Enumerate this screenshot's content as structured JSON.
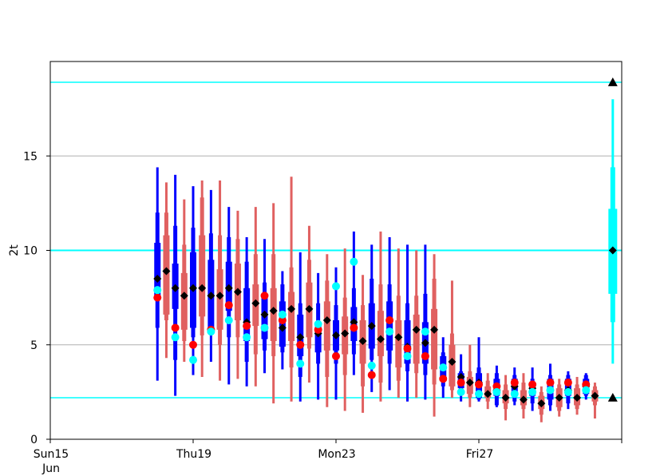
{
  "chart_data": {
    "type": "box",
    "ylabel": "2t",
    "ylim": [
      0,
      20
    ],
    "yticks": [
      0,
      5,
      10,
      15
    ],
    "xlim": [
      0,
      16
    ],
    "xticks": [
      {
        "x": 0,
        "label": "Sun15",
        "sublabel": "Jun",
        "color": "#ff0000"
      },
      {
        "x": 4,
        "label": "Thu19",
        "sublabel": "",
        "color": "#000000"
      },
      {
        "x": 8,
        "label": "Mon23",
        "sublabel": "",
        "color": "#000000"
      },
      {
        "x": 12,
        "label": "Fri27",
        "sublabel": "",
        "color": "#000000"
      },
      {
        "x": 16,
        "label": "",
        "sublabel": "",
        "color": "#000000"
      }
    ],
    "grid": true,
    "colors": {
      "blue": "#0000ff",
      "red": "#e06060",
      "cyan": "#00ffff",
      "red_dot": "#ff0000",
      "diamond": "#000000"
    },
    "hlines": [
      {
        "y": 18.9,
        "color": "#00ffff",
        "width": 1.5
      },
      {
        "y": 10.0,
        "color": "#00ffff",
        "width": 2
      },
      {
        "y": 2.2,
        "color": "#00ffff",
        "width": 1.5
      }
    ],
    "series": [
      {
        "name": "blue",
        "boxes": [
          {
            "x": 3.0,
            "min": 3.1,
            "p10": 5.9,
            "q1": 7.4,
            "q3": 10.4,
            "p90": 12.0,
            "max": 14.4,
            "mean": 8.5
          },
          {
            "x": 3.5,
            "min": 2.3,
            "p10": 4.2,
            "q1": 6.9,
            "q3": 9.3,
            "p90": 11.3,
            "max": 14.0,
            "mean": 8.0
          },
          {
            "x": 4.0,
            "min": 3.4,
            "p10": 5.4,
            "q1": 5.9,
            "q3": 9.9,
            "p90": 11.2,
            "max": 13.4,
            "mean": 8.0
          },
          {
            "x": 4.5,
            "min": 4.1,
            "p10": 5.6,
            "q1": 5.9,
            "q3": 9.5,
            "p90": 10.9,
            "max": 13.2,
            "mean": 7.6
          },
          {
            "x": 5.0,
            "min": 2.9,
            "p10": 5.4,
            "q1": 6.8,
            "q3": 9.4,
            "p90": 10.7,
            "max": 12.3,
            "mean": 8.0
          },
          {
            "x": 5.5,
            "min": 2.8,
            "p10": 4.1,
            "q1": 5.2,
            "q3": 8.0,
            "p90": 9.4,
            "max": 10.7,
            "mean": 6.2
          },
          {
            "x": 6.0,
            "min": 3.5,
            "p10": 4.7,
            "q1": 5.3,
            "q3": 7.6,
            "p90": 8.3,
            "max": 10.6,
            "mean": 6.6
          },
          {
            "x": 6.5,
            "min": 3.7,
            "p10": 4.6,
            "q1": 4.9,
            "q3": 7.3,
            "p90": 8.2,
            "max": 8.9,
            "mean": 5.9
          },
          {
            "x": 7.0,
            "min": 2.0,
            "p10": 3.3,
            "q1": 4.4,
            "q3": 6.6,
            "p90": 7.2,
            "max": 9.9,
            "mean": 5.4
          },
          {
            "x": 7.5,
            "min": 2.1,
            "p10": 4.0,
            "q1": 4.6,
            "q3": 6.2,
            "p90": 7.2,
            "max": 8.8,
            "mean": 5.6
          },
          {
            "x": 8.0,
            "min": 2.1,
            "p10": 4.0,
            "q1": 4.7,
            "q3": 6.3,
            "p90": 7.1,
            "max": 9.1,
            "mean": 5.5
          },
          {
            "x": 8.5,
            "min": 3.4,
            "p10": 4.5,
            "q1": 5.2,
            "q3": 7.0,
            "p90": 8.0,
            "max": 11.0,
            "mean": 6.2
          },
          {
            "x": 9.0,
            "min": 2.5,
            "p10": 4.2,
            "q1": 4.8,
            "q3": 7.2,
            "p90": 8.5,
            "max": 10.3,
            "mean": 6.0
          },
          {
            "x": 9.5,
            "min": 2.6,
            "p10": 4.0,
            "q1": 4.7,
            "q3": 7.3,
            "p90": 8.2,
            "max": 10.7,
            "mean": 5.7
          },
          {
            "x": 10.0,
            "min": 2.0,
            "p10": 3.6,
            "q1": 4.0,
            "q3": 6.3,
            "p90": 7.2,
            "max": 10.3,
            "mean": 4.9
          },
          {
            "x": 10.5,
            "min": 2.1,
            "p10": 3.4,
            "q1": 4.0,
            "q3": 6.2,
            "p90": 7.7,
            "max": 10.3,
            "mean": 5.1
          },
          {
            "x": 11.0,
            "min": 2.2,
            "p10": 2.8,
            "q1": 3.2,
            "q3": 4.4,
            "p90": 4.6,
            "max": 5.4,
            "mean": 3.8
          },
          {
            "x": 11.5,
            "min": 2.0,
            "p10": 2.4,
            "q1": 2.7,
            "q3": 3.5,
            "p90": 3.6,
            "max": 4.5,
            "mean": 3.3
          },
          {
            "x": 12.0,
            "min": 2.0,
            "p10": 2.1,
            "q1": 2.2,
            "q3": 3.5,
            "p90": 3.8,
            "max": 5.4,
            "mean": 3.0
          },
          {
            "x": 12.5,
            "min": 1.7,
            "p10": 1.8,
            "q1": 2.3,
            "q3": 3.2,
            "p90": 3.5,
            "max": 3.9,
            "mean": 2.6
          },
          {
            "x": 13.0,
            "min": 1.8,
            "p10": 2.0,
            "q1": 2.4,
            "q3": 3.2,
            "p90": 3.4,
            "max": 3.8,
            "mean": 2.8
          },
          {
            "x": 13.5,
            "min": 1.5,
            "p10": 1.9,
            "q1": 2.3,
            "q3": 3.0,
            "p90": 3.2,
            "max": 3.8,
            "mean": 2.7
          },
          {
            "x": 14.0,
            "min": 1.5,
            "p10": 1.8,
            "q1": 2.1,
            "q3": 3.2,
            "p90": 3.4,
            "max": 4.0,
            "mean": 2.6
          },
          {
            "x": 14.5,
            "min": 1.6,
            "p10": 1.9,
            "q1": 2.3,
            "q3": 3.2,
            "p90": 3.4,
            "max": 3.6,
            "mean": 2.6
          },
          {
            "x": 15.0,
            "min": 2.1,
            "p10": 2.3,
            "q1": 2.4,
            "q3": 3.2,
            "p90": 3.4,
            "max": 3.5,
            "mean": 2.8
          }
        ]
      },
      {
        "name": "red",
        "boxes": [
          {
            "x": 3.25,
            "min": 4.3,
            "p10": 6.3,
            "q1": 6.6,
            "q3": 10.8,
            "p90": 12.0,
            "max": 13.6,
            "mean": 8.9
          },
          {
            "x": 3.75,
            "min": 4.1,
            "p10": 5.2,
            "q1": 5.8,
            "q3": 8.8,
            "p90": 10.3,
            "max": 12.7,
            "mean": 7.6
          },
          {
            "x": 4.25,
            "min": 3.3,
            "p10": 5.5,
            "q1": 6.5,
            "q3": 10.8,
            "p90": 12.8,
            "max": 13.7,
            "mean": 8.0
          },
          {
            "x": 4.75,
            "min": 3.1,
            "p10": 5.0,
            "q1": 5.8,
            "q3": 9.0,
            "p90": 10.8,
            "max": 13.7,
            "mean": 7.6
          },
          {
            "x": 5.25,
            "min": 3.2,
            "p10": 5.4,
            "q1": 6.3,
            "q3": 9.3,
            "p90": 10.6,
            "max": 12.1,
            "mean": 7.8
          },
          {
            "x": 5.75,
            "min": 2.8,
            "p10": 4.5,
            "q1": 6.0,
            "q3": 8.2,
            "p90": 9.8,
            "max": 12.3,
            "mean": 7.2
          },
          {
            "x": 6.25,
            "min": 1.9,
            "p10": 4.4,
            "q1": 5.2,
            "q3": 8.0,
            "p90": 9.8,
            "max": 12.5,
            "mean": 6.8
          },
          {
            "x": 6.75,
            "min": 2.0,
            "p10": 3.8,
            "q1": 5.2,
            "q3": 7.8,
            "p90": 9.1,
            "max": 13.9,
            "mean": 6.9
          },
          {
            "x": 7.25,
            "min": 3.0,
            "p10": 4.8,
            "q1": 5.4,
            "q3": 8.3,
            "p90": 9.5,
            "max": 11.3,
            "mean": 6.9
          },
          {
            "x": 7.75,
            "min": 1.7,
            "p10": 3.3,
            "q1": 4.7,
            "q3": 7.3,
            "p90": 8.4,
            "max": 9.8,
            "mean": 6.3
          },
          {
            "x": 8.25,
            "min": 1.5,
            "p10": 3.4,
            "q1": 4.5,
            "q3": 6.5,
            "p90": 7.5,
            "max": 10.1,
            "mean": 5.6
          },
          {
            "x": 8.75,
            "min": 1.4,
            "p10": 2.8,
            "q1": 4.0,
            "q3": 6.3,
            "p90": 7.1,
            "max": 8.7,
            "mean": 5.2
          },
          {
            "x": 9.25,
            "min": 2.0,
            "p10": 3.0,
            "q1": 4.4,
            "q3": 6.8,
            "p90": 8.2,
            "max": 11.0,
            "mean": 5.3
          },
          {
            "x": 9.75,
            "min": 2.2,
            "p10": 3.1,
            "q1": 3.8,
            "q3": 6.3,
            "p90": 7.6,
            "max": 10.1,
            "mean": 5.4
          },
          {
            "x": 10.25,
            "min": 2.2,
            "p10": 3.5,
            "q1": 4.0,
            "q3": 6.6,
            "p90": 7.6,
            "max": 10.0,
            "mean": 5.8
          },
          {
            "x": 10.75,
            "min": 1.2,
            "p10": 2.9,
            "q1": 3.7,
            "q3": 6.9,
            "p90": 8.5,
            "max": 9.8,
            "mean": 5.8
          },
          {
            "x": 11.25,
            "min": 2.2,
            "p10": 2.6,
            "q1": 2.8,
            "q3": 5.0,
            "p90": 5.6,
            "max": 8.4,
            "mean": 4.1
          },
          {
            "x": 11.75,
            "min": 1.7,
            "p10": 2.2,
            "q1": 2.4,
            "q3": 3.3,
            "p90": 3.6,
            "max": 5.0,
            "mean": 3.0
          },
          {
            "x": 12.25,
            "min": 1.6,
            "p10": 2.0,
            "q1": 2.2,
            "q3": 2.8,
            "p90": 3.1,
            "max": 3.5,
            "mean": 2.4
          },
          {
            "x": 12.75,
            "min": 1.0,
            "p10": 1.6,
            "q1": 1.9,
            "q3": 2.6,
            "p90": 2.9,
            "max": 3.4,
            "mean": 2.2
          },
          {
            "x": 13.25,
            "min": 1.1,
            "p10": 1.6,
            "q1": 1.8,
            "q3": 2.6,
            "p90": 3.0,
            "max": 3.5,
            "mean": 2.1
          },
          {
            "x": 13.75,
            "min": 0.9,
            "p10": 1.3,
            "q1": 1.6,
            "q3": 2.3,
            "p90": 2.5,
            "max": 2.8,
            "mean": 1.9
          },
          {
            "x": 14.25,
            "min": 1.2,
            "p10": 1.5,
            "q1": 1.7,
            "q3": 2.7,
            "p90": 2.9,
            "max": 3.2,
            "mean": 2.2
          },
          {
            "x": 14.75,
            "min": 1.3,
            "p10": 1.6,
            "q1": 1.8,
            "q3": 2.7,
            "p90": 2.9,
            "max": 3.3,
            "mean": 2.2
          },
          {
            "x": 15.25,
            "min": 1.1,
            "p10": 1.8,
            "q1": 2.0,
            "q3": 2.6,
            "p90": 2.8,
            "max": 3.0,
            "mean": 2.3
          }
        ]
      }
    ],
    "red_dots": [
      {
        "x": 3.0,
        "y": 7.5
      },
      {
        "x": 3.5,
        "y": 5.9
      },
      {
        "x": 4.0,
        "y": 5.0
      },
      {
        "x": 4.5,
        "y": 5.8
      },
      {
        "x": 5.0,
        "y": 7.1
      },
      {
        "x": 5.5,
        "y": 6.0
      },
      {
        "x": 6.0,
        "y": 7.6
      },
      {
        "x": 6.5,
        "y": 6.3
      },
      {
        "x": 7.0,
        "y": 5.0
      },
      {
        "x": 7.5,
        "y": 5.8
      },
      {
        "x": 8.0,
        "y": 4.4
      },
      {
        "x": 8.5,
        "y": 5.9
      },
      {
        "x": 9.0,
        "y": 3.4
      },
      {
        "x": 9.5,
        "y": 6.3
      },
      {
        "x": 10.0,
        "y": 4.8
      },
      {
        "x": 10.5,
        "y": 4.4
      },
      {
        "x": 11.0,
        "y": 3.2
      },
      {
        "x": 11.5,
        "y": 3.0
      },
      {
        "x": 12.0,
        "y": 2.9
      },
      {
        "x": 12.5,
        "y": 2.8
      },
      {
        "x": 13.0,
        "y": 3.0
      },
      {
        "x": 13.5,
        "y": 2.9
      },
      {
        "x": 14.0,
        "y": 3.0
      },
      {
        "x": 14.5,
        "y": 3.0
      },
      {
        "x": 15.0,
        "y": 2.9
      }
    ],
    "cyan_dots": [
      {
        "x": 3.0,
        "y": 7.9
      },
      {
        "x": 3.5,
        "y": 5.4
      },
      {
        "x": 4.0,
        "y": 4.2
      },
      {
        "x": 4.5,
        "y": 5.7
      },
      {
        "x": 5.0,
        "y": 6.3
      },
      {
        "x": 5.5,
        "y": 5.4
      },
      {
        "x": 6.0,
        "y": 5.9
      },
      {
        "x": 6.5,
        "y": 6.6
      },
      {
        "x": 7.0,
        "y": 4.0
      },
      {
        "x": 7.5,
        "y": 6.1
      },
      {
        "x": 8.0,
        "y": 8.1
      },
      {
        "x": 8.5,
        "y": 9.4
      },
      {
        "x": 9.0,
        "y": 3.9
      },
      {
        "x": 9.5,
        "y": 5.7
      },
      {
        "x": 10.0,
        "y": 4.4
      },
      {
        "x": 10.5,
        "y": 5.7
      },
      {
        "x": 11.0,
        "y": 3.8
      },
      {
        "x": 11.5,
        "y": 2.5
      },
      {
        "x": 12.0,
        "y": 2.4
      },
      {
        "x": 12.5,
        "y": 2.5
      },
      {
        "x": 13.0,
        "y": 2.4
      },
      {
        "x": 13.5,
        "y": 2.5
      },
      {
        "x": 14.0,
        "y": 2.6
      },
      {
        "x": 14.5,
        "y": 2.5
      },
      {
        "x": 15.0,
        "y": 2.6
      }
    ],
    "climate": {
      "x": 15.75,
      "min": 4.0,
      "p10": 6.2,
      "q1": 7.7,
      "q3": 12.2,
      "p90": 14.4,
      "max": 18.0,
      "mean": 10.0,
      "triangle_top": 18.9,
      "triangle_bottom": 2.2
    }
  }
}
